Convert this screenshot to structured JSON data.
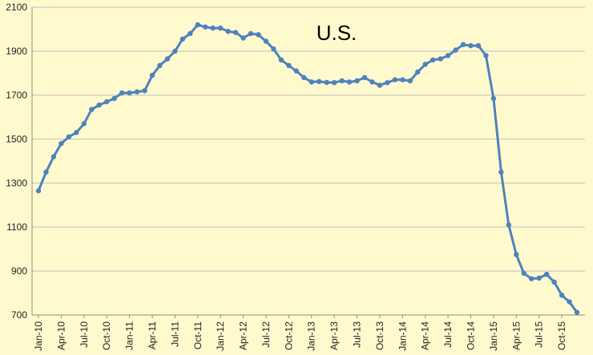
{
  "chart_data": {
    "type": "line",
    "title": "U.S.",
    "xlabel": "",
    "ylabel": "",
    "ylim": [
      700,
      2100
    ],
    "yticks": [
      700,
      900,
      1100,
      1300,
      1500,
      1700,
      1900,
      2100
    ],
    "x_tick_labels": [
      "Jan-10",
      "Apr-10",
      "Jul-10",
      "Oct-10",
      "Jan-11",
      "Apr-11",
      "Jul-11",
      "Oct-11",
      "Jan-12",
      "Apr-12",
      "Jul-12",
      "Oct-12",
      "Jan-13",
      "Apr-13",
      "Jul-13",
      "Oct-13",
      "Jan-14",
      "Apr-14",
      "Jul-14",
      "Oct-14",
      "Jan-15",
      "Apr-15",
      "Jul-15",
      "Oct-15"
    ],
    "grid": true,
    "legend": "none",
    "series": [
      {
        "color": "#4f81bd",
        "values": [
          1265,
          1350,
          1420,
          1480,
          1510,
          1530,
          1570,
          1635,
          1655,
          1670,
          1685,
          1710,
          1710,
          1715,
          1720,
          1790,
          1835,
          1865,
          1900,
          1955,
          1980,
          2020,
          2010,
          2005,
          2005,
          1990,
          1985,
          1960,
          1980,
          1975,
          1945,
          1910,
          1860,
          1835,
          1810,
          1780,
          1760,
          1762,
          1758,
          1757,
          1765,
          1760,
          1765,
          1780,
          1760,
          1745,
          1757,
          1770,
          1770,
          1765,
          1805,
          1840,
          1860,
          1865,
          1880,
          1905,
          1930,
          1925,
          1925,
          1880,
          1685,
          1350,
          1110,
          975,
          890,
          865,
          868,
          885,
          850,
          790,
          760,
          712
        ]
      }
    ]
  }
}
